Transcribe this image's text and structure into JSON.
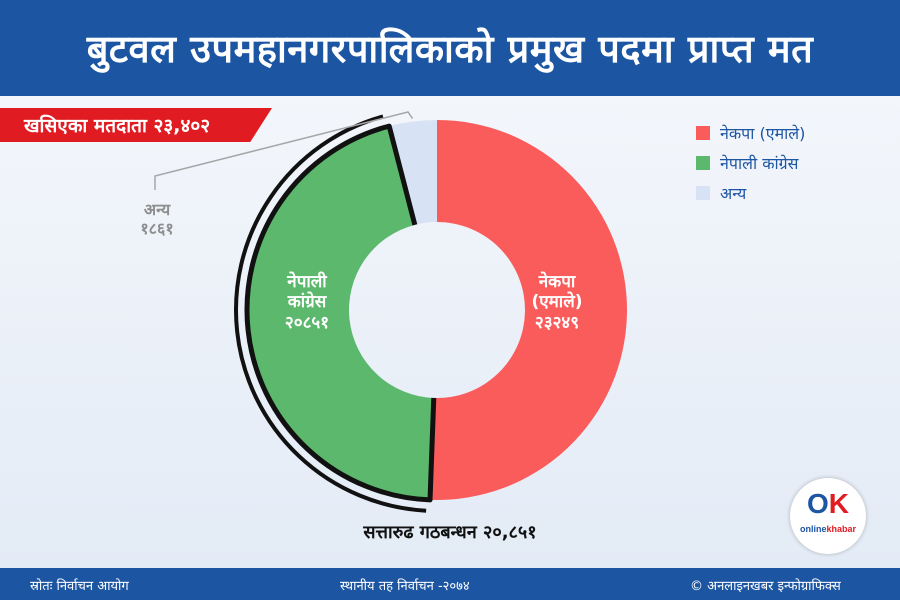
{
  "header": {
    "title": "बुटवल उपमहानगरपालिकाको प्रमुख पदमा प्राप्त मत"
  },
  "banner": {
    "text": "खसिएका मतदाता २३,४०२"
  },
  "chart_data": {
    "type": "pie",
    "categories": [
      "नेकपा (एमाले)",
      "नेपाली कांग्रेस",
      "अन्य"
    ],
    "values": [
      23249,
      20851,
      1861
    ],
    "value_labels": [
      "२३२४९",
      "२०८५१",
      "१८६१"
    ],
    "slice_labels": [
      {
        "lines": [
          "नेकपा",
          "(एमाले)",
          "२३२४९"
        ]
      },
      {
        "lines": [
          "नेपाली",
          "कांग्रेस",
          "२०८५१"
        ]
      },
      {
        "lines": [
          "अन्य",
          "१८६१"
        ]
      }
    ],
    "colors": [
      "#fa5c5c",
      "#5cb86c",
      "#d7e2f4"
    ],
    "legend": [
      "नेकपा (एमाले)",
      "नेपाली कांग्रेस",
      "अन्य"
    ],
    "legend_position": "top-right",
    "annotation": "सत्तारुढ गठबन्धन २०,८५१"
  },
  "logo": {
    "mark_o": "O",
    "mark_k": "K",
    "text_a": "online",
    "text_b": "khabar"
  },
  "footer": {
    "source": "स्रोतः निर्वाचन आयोग",
    "center": "स्थानीय तह निर्वाचन -२०७४",
    "credit": "© अनलाइनखबर इन्फोग्राफिक्स"
  }
}
